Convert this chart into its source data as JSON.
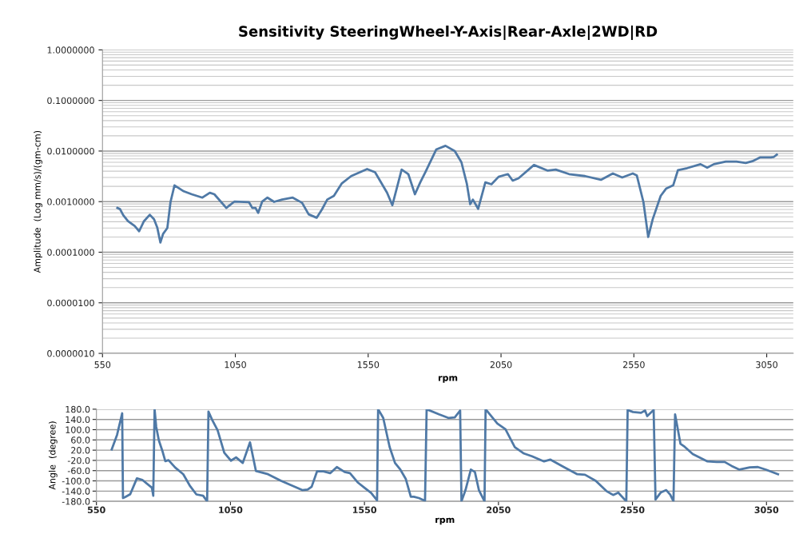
{
  "chart_data": [
    {
      "type": "line",
      "title": "Sensitivity SteeringWheel-Y-Axis|Rear-Axle|2WD|RD",
      "xlabel": "rpm",
      "ylabel": "Amplitude  (Log mm/s)/(gm-cm)",
      "log": true,
      "grid": "y",
      "marker": "none",
      "line_style": "solid",
      "xlim": [
        550,
        3150
      ],
      "xticks": [
        550,
        1050,
        1550,
        2050,
        2550,
        3050
      ],
      "ylim": [
        1e-06,
        1
      ],
      "yticks": [
        {
          "value": 1e-06,
          "label": "0.0000010"
        },
        {
          "value": 1e-05,
          "label": "0.0000100"
        },
        {
          "value": 0.0001,
          "label": "0.0001000"
        },
        {
          "value": 0.001,
          "label": "0.0010000"
        },
        {
          "value": 0.01,
          "label": "0.0100000"
        },
        {
          "value": 0.1,
          "label": "0.1000000"
        },
        {
          "value": 1,
          "label": "1.0000000"
        }
      ],
      "series": [
        {
          "color": "#4f79a6",
          "x": [
            606,
            616,
            628,
            646,
            671,
            688,
            706,
            728,
            744,
            756,
            768,
            778,
            794,
            806,
            821,
            856,
            886,
            926,
            954,
            971,
            996,
            1016,
            1046,
            1101,
            1114,
            1126,
            1136,
            1151,
            1171,
            1196,
            1226,
            1266,
            1301,
            1326,
            1356,
            1376,
            1396,
            1421,
            1451,
            1486,
            1546,
            1576,
            1621,
            1641,
            1676,
            1701,
            1726,
            1746,
            1766,
            1806,
            1841,
            1876,
            1901,
            1921,
            1934,
            1944,
            1964,
            1991,
            2014,
            2041,
            2076,
            2094,
            2116,
            2174,
            2226,
            2256,
            2306,
            2366,
            2426,
            2471,
            2506,
            2546,
            2561,
            2586,
            2604,
            2621,
            2651,
            2671,
            2698,
            2716,
            2751,
            2801,
            2826,
            2851,
            2896,
            2936,
            2971,
            2996,
            3026,
            3066,
            3076,
            3088
          ],
          "values": [
            0.00075,
            0.00071,
            0.00054,
            0.00041,
            0.00033,
            0.00026,
            0.00041,
            0.00055,
            0.00045,
            0.00031,
            0.000155,
            0.00023,
            0.0003,
            0.00098,
            0.0021,
            0.0016,
            0.0014,
            0.0012,
            0.0015,
            0.0014,
            0.00099,
            0.00075,
            0.001,
            0.00098,
            0.00075,
            0.00075,
            0.0006,
            0.001,
            0.0012,
            0.00099,
            0.0011,
            0.0012,
            0.00095,
            0.00056,
            0.00048,
            0.0007,
            0.0011,
            0.0013,
            0.0023,
            0.0032,
            0.0044,
            0.0038,
            0.0015,
            0.00085,
            0.0043,
            0.0035,
            0.0014,
            0.0024,
            0.0039,
            0.0107,
            0.0127,
            0.01,
            0.006,
            0.0023,
            0.00089,
            0.0011,
            0.00072,
            0.0024,
            0.0022,
            0.0031,
            0.0035,
            0.0026,
            0.0029,
            0.0053,
            0.0041,
            0.0043,
            0.0035,
            0.0032,
            0.0027,
            0.0036,
            0.003,
            0.0036,
            0.0033,
            0.00098,
            0.0002,
            0.00045,
            0.0013,
            0.0018,
            0.0021,
            0.0042,
            0.0046,
            0.0055,
            0.0047,
            0.0055,
            0.0062,
            0.0062,
            0.0058,
            0.0063,
            0.0075,
            0.0075,
            0.0076,
            0.0085
          ]
        }
      ]
    },
    {
      "type": "line",
      "xlabel": "rpm",
      "ylabel": "Angle  (degree)",
      "grid": "y",
      "marker": "none",
      "line_style": "solid",
      "xlim": [
        550,
        3150
      ],
      "xticks": [
        550,
        1050,
        1550,
        2050,
        2550,
        3050
      ],
      "ylim": [
        -180,
        180
      ],
      "yticks": [
        {
          "value": -180,
          "label": "-180.0"
        },
        {
          "value": -140,
          "label": "-140.0"
        },
        {
          "value": -100,
          "label": "-100.0"
        },
        {
          "value": -60,
          "label": "-60.0"
        },
        {
          "value": -20,
          "label": "-20.0"
        },
        {
          "value": 20,
          "label": "20.0"
        },
        {
          "value": 60,
          "label": "60.0"
        },
        {
          "value": 100,
          "label": "100.0"
        },
        {
          "value": 140,
          "label": "140.0"
        },
        {
          "value": 180,
          "label": "180.0"
        }
      ],
      "series": [
        {
          "color": "#4f79a6",
          "x": [
            607,
            627,
            646,
            649,
            656,
            676,
            701,
            721,
            757,
            762,
            767,
            773,
            783,
            797,
            807,
            819,
            844,
            874,
            898,
            923,
            948,
            963,
            968,
            982,
            1002,
            1027,
            1052,
            1071,
            1096,
            1123,
            1145,
            1190,
            1239,
            1318,
            1338,
            1353,
            1373,
            1397,
            1422,
            1447,
            1476,
            1496,
            1526,
            1550,
            1575,
            1597,
            1601,
            1620,
            1644,
            1664,
            1684,
            1704,
            1723,
            1734,
            1753,
            1776,
            1782,
            1828,
            1863,
            1887,
            1907,
            1912,
            1927,
            1947,
            1962,
            1977,
            1998,
            2002,
            2046,
            2076,
            2111,
            2145,
            2175,
            2220,
            2244,
            2294,
            2344,
            2373,
            2413,
            2453,
            2478,
            2497,
            2527,
            2532,
            2552,
            2582,
            2597,
            2605,
            2629,
            2636,
            2656,
            2676,
            2691,
            2703,
            2709,
            2729,
            2745,
            2775,
            2830,
            2864,
            2894,
            2919,
            2949,
            2988,
            3018,
            3048,
            3093
          ],
          "values": [
            23,
            80,
            164,
            -167,
            -164,
            -152,
            -90,
            -96,
            -127,
            -158,
            180,
            111,
            58,
            14,
            -23,
            -19,
            -48,
            -74,
            -118,
            -153,
            -158,
            -180,
            171,
            138,
            98,
            10,
            -21,
            -8,
            -30,
            51,
            -61,
            -74,
            -100,
            -136,
            -134,
            -123,
            -63,
            -63,
            -70,
            -46,
            -65,
            -70,
            -107,
            -127,
            -147,
            -176,
            180,
            146,
            32,
            -30,
            -56,
            -92,
            -162,
            -162,
            -167,
            -178,
            180,
            160,
            146,
            148,
            175,
            -180,
            -136,
            -56,
            -65,
            -136,
            -180,
            180,
            124,
            102,
            32,
            7,
            -4,
            -24,
            -17,
            -46,
            -74,
            -76,
            -100,
            -140,
            -155,
            -146,
            -180,
            177,
            169,
            166,
            175,
            153,
            177,
            -173,
            -145,
            -136,
            -154,
            -180,
            160,
            45,
            33,
            5,
            -24,
            -26,
            -26,
            -41,
            -56,
            -47,
            -46,
            -56,
            -74
          ]
        }
      ]
    }
  ]
}
